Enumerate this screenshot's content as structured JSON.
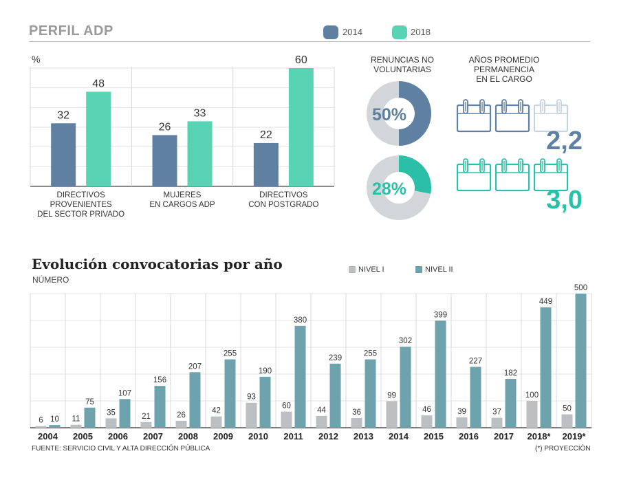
{
  "header": {
    "title": "PERFIL ADP",
    "legend": [
      {
        "label": "2014",
        "color": "#5f80a0"
      },
      {
        "label": "2018",
        "color": "#58d3b3"
      }
    ]
  },
  "profile_chart": {
    "unit_label": "%",
    "groups": [
      {
        "label_lines": [
          "DIRECTIVOS",
          "PROVENIENTES",
          "DEL SECTOR PRIVADO"
        ]
      },
      {
        "label_lines": [
          "MUJERES",
          "EN CARGOS ADP"
        ]
      },
      {
        "label_lines": [
          "DIRECTIVOS",
          "CON POSTGRADO"
        ]
      }
    ]
  },
  "renuncias": {
    "title_lines": [
      "RENUNCIAS NO",
      "VOLUNTARIAS"
    ],
    "donuts": [
      {
        "year": "2014",
        "value": 50,
        "label": "50%",
        "color": "#5f80a0"
      },
      {
        "year": "2018",
        "value": 28,
        "label": "28%",
        "color": "#2bbfa7"
      }
    ],
    "track_color": "#d3d6d9"
  },
  "permanencia": {
    "title_lines": [
      "AÑOS PROMEDIO",
      "PERMANENCIA",
      "EN EL CARGO"
    ],
    "rows": [
      {
        "year": "2014",
        "value": 2.2,
        "label": "2,2",
        "color": "#5f80a0"
      },
      {
        "year": "2018",
        "value": 3.0,
        "label": "3,0",
        "color": "#2bbfa7"
      }
    ]
  },
  "evolucion": {
    "title": "Evolución convocatorias por año",
    "subtitle": "NÚMERO",
    "legend": [
      {
        "label": "NIVEL I",
        "color": "#bcbfc2"
      },
      {
        "label": "NIVEL II",
        "color": "#6ea3ae"
      }
    ],
    "footnote": "FUENTE: SERVICIO CIVIL Y ALTA DIRECCIÓN PÚBLICA",
    "projection_note": "(*) PROYECCIÓN"
  },
  "chart_data": [
    {
      "type": "bar",
      "title": "",
      "ylabel": "%",
      "categories": [
        "DIRECTIVOS PROVENIENTES DEL SECTOR PRIVADO",
        "MUJERES EN CARGOS ADP",
        "DIRECTIVOS CON POSTGRADO"
      ],
      "series": [
        {
          "name": "2014",
          "values": [
            32,
            26,
            22
          ],
          "color": "#5f80a0"
        },
        {
          "name": "2018",
          "values": [
            48,
            33,
            60
          ],
          "color": "#58d3b3"
        }
      ],
      "ylim": [
        0,
        60
      ],
      "grid": true
    },
    {
      "type": "pie",
      "title": "RENUNCIAS NO VOLUNTARIAS",
      "values": [
        {
          "year": "2014",
          "percent": 50
        },
        {
          "year": "2018",
          "percent": 28
        }
      ]
    },
    {
      "type": "bar",
      "title": "AÑOS PROMEDIO PERMANENCIA EN EL CARGO",
      "categories": [
        "2014",
        "2018"
      ],
      "values": [
        2.2,
        3.0
      ]
    },
    {
      "type": "bar",
      "title": "Evolución convocatorias por año",
      "ylabel": "NÚMERO",
      "categories": [
        "2004",
        "2005",
        "2006",
        "2007",
        "2008",
        "2009",
        "2010",
        "2011",
        "2012",
        "2013",
        "2014",
        "2015",
        "2016",
        "2017",
        "2018*",
        "2019*"
      ],
      "series": [
        {
          "name": "NIVEL I",
          "values": [
            6,
            11,
            35,
            21,
            26,
            42,
            93,
            60,
            44,
            36,
            99,
            46,
            39,
            37,
            100,
            50
          ],
          "color": "#bcbfc2"
        },
        {
          "name": "NIVEL II",
          "values": [
            10,
            75,
            107,
            156,
            207,
            255,
            190,
            380,
            239,
            255,
            302,
            399,
            227,
            182,
            449,
            500
          ],
          "color": "#6ea3ae"
        }
      ],
      "ylim": [
        0,
        500
      ],
      "grid": true
    }
  ]
}
